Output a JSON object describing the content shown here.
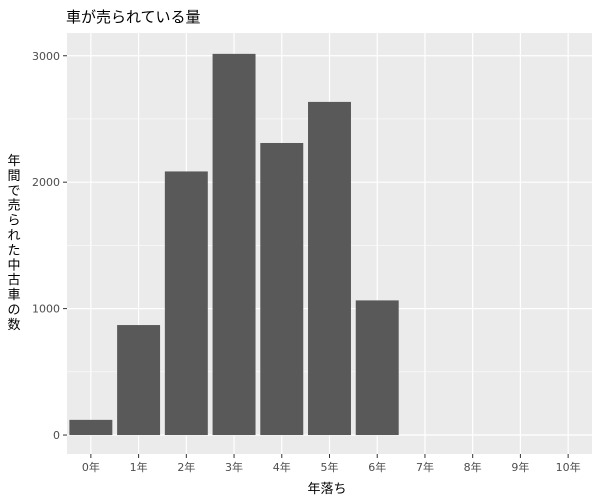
{
  "chart_data": {
    "type": "bar",
    "title": "車が売られている量",
    "xlabel": "年落ち",
    "ylabel": "年間で売られた中古車の数",
    "ylabel_lines": [
      "年",
      "間",
      "で",
      "売",
      "ら",
      "れ",
      "た",
      "中",
      "古",
      "車",
      "の",
      "数"
    ],
    "categories": [
      "0年",
      "1年",
      "2年",
      "3年",
      "4年",
      "5年",
      "6年",
      "7年",
      "8年",
      "9年",
      "10年"
    ],
    "values": [
      120,
      870,
      2085,
      3015,
      2310,
      2635,
      1065,
      0,
      0,
      0,
      0
    ],
    "ylim": [
      -150,
      3180
    ],
    "yticks": [
      0,
      1000,
      2000,
      3000
    ],
    "ytick_labels": [
      "0",
      "1000",
      "2000",
      "3000"
    ],
    "grid": true,
    "legend": "none",
    "colors": {
      "bar": "#595959",
      "panel": "#ebebeb",
      "grid_major": "#ffffff",
      "tick_text": "#4d4d4d",
      "tick_mark": "#333333"
    }
  }
}
